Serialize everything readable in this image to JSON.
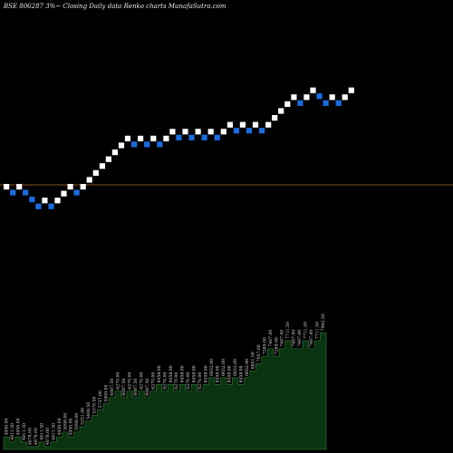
{
  "title": "BSE 806287 3%~ Closing Daily data  Renko  charts MunafaSutra.com",
  "colors": {
    "background": "#000000",
    "up_brick": "#ffffff",
    "down_brick": "#1a6ce0",
    "reference_line": "#b36a2a",
    "area_fill": "#0a3311",
    "area_stroke": "#2e6b2e"
  },
  "chart_data": {
    "type": "renko",
    "brick_percent": 3,
    "reference_level": 4780,
    "bricks": [
      {
        "dir": "up",
        "value": 4950.0
      },
      {
        "dir": "down",
        "value": 4811.5
      },
      {
        "dir": "up",
        "value": 4950.0
      },
      {
        "dir": "down",
        "value": 4811.5
      },
      {
        "dir": "down",
        "value": 4678.0
      },
      {
        "dir": "down",
        "value": 4678.0
      },
      {
        "dir": "up",
        "value": 4811.5
      },
      {
        "dir": "down",
        "value": 4678.0
      },
      {
        "dir": "up",
        "value": 4811.5
      },
      {
        "dir": "up",
        "value": 4950.0
      },
      {
        "dir": "up",
        "value": 5098.0
      },
      {
        "dir": "down",
        "value": 4950.0
      },
      {
        "dir": "up",
        "value": 5098.0
      },
      {
        "dir": "up",
        "value": 5251.0
      },
      {
        "dir": "up",
        "value": 5408.5
      },
      {
        "dir": "up",
        "value": 5570.5
      },
      {
        "dir": "up",
        "value": 5737.0
      },
      {
        "dir": "up",
        "value": 5909.0
      },
      {
        "dir": "up",
        "value": 6087.5
      },
      {
        "dir": "up",
        "value": 6270.0
      },
      {
        "dir": "down",
        "value": 6087.5
      },
      {
        "dir": "up",
        "value": 6270.0
      },
      {
        "dir": "down",
        "value": 6087.5
      },
      {
        "dir": "up",
        "value": 6270.0
      },
      {
        "dir": "down",
        "value": 6087.5
      },
      {
        "dir": "up",
        "value": 6270.0
      },
      {
        "dir": "up",
        "value": 6458.0
      },
      {
        "dir": "down",
        "value": 6270.0
      },
      {
        "dir": "up",
        "value": 6458.0
      },
      {
        "dir": "down",
        "value": 6270.0
      },
      {
        "dir": "up",
        "value": 6458.0
      },
      {
        "dir": "down",
        "value": 6270.0
      },
      {
        "dir": "up",
        "value": 6458.0
      },
      {
        "dir": "down",
        "value": 6270.0
      },
      {
        "dir": "up",
        "value": 6458.0
      },
      {
        "dir": "up",
        "value": 6652.0
      },
      {
        "dir": "down",
        "value": 6458.0
      },
      {
        "dir": "up",
        "value": 6652.0
      },
      {
        "dir": "down",
        "value": 6458.0
      },
      {
        "dir": "up",
        "value": 6652.0
      },
      {
        "dir": "down",
        "value": 6458.0
      },
      {
        "dir": "up",
        "value": 6652.0
      },
      {
        "dir": "up",
        "value": 6851.5
      },
      {
        "dir": "up",
        "value": 7057.0
      },
      {
        "dir": "up",
        "value": 7269.0
      },
      {
        "dir": "up",
        "value": 7487.0
      },
      {
        "dir": "down",
        "value": 7269.0
      },
      {
        "dir": "up",
        "value": 7487.0
      },
      {
        "dir": "up",
        "value": 7711.5
      },
      {
        "dir": "down",
        "value": 7487.0
      },
      {
        "dir": "down",
        "value": 7487.0
      },
      {
        "dir": "up",
        "value": 7711.5
      },
      {
        "dir": "down",
        "value": 7487.0
      },
      {
        "dir": "up",
        "value": 7711.5
      },
      {
        "dir": "up",
        "value": 7942.5
      }
    ]
  }
}
